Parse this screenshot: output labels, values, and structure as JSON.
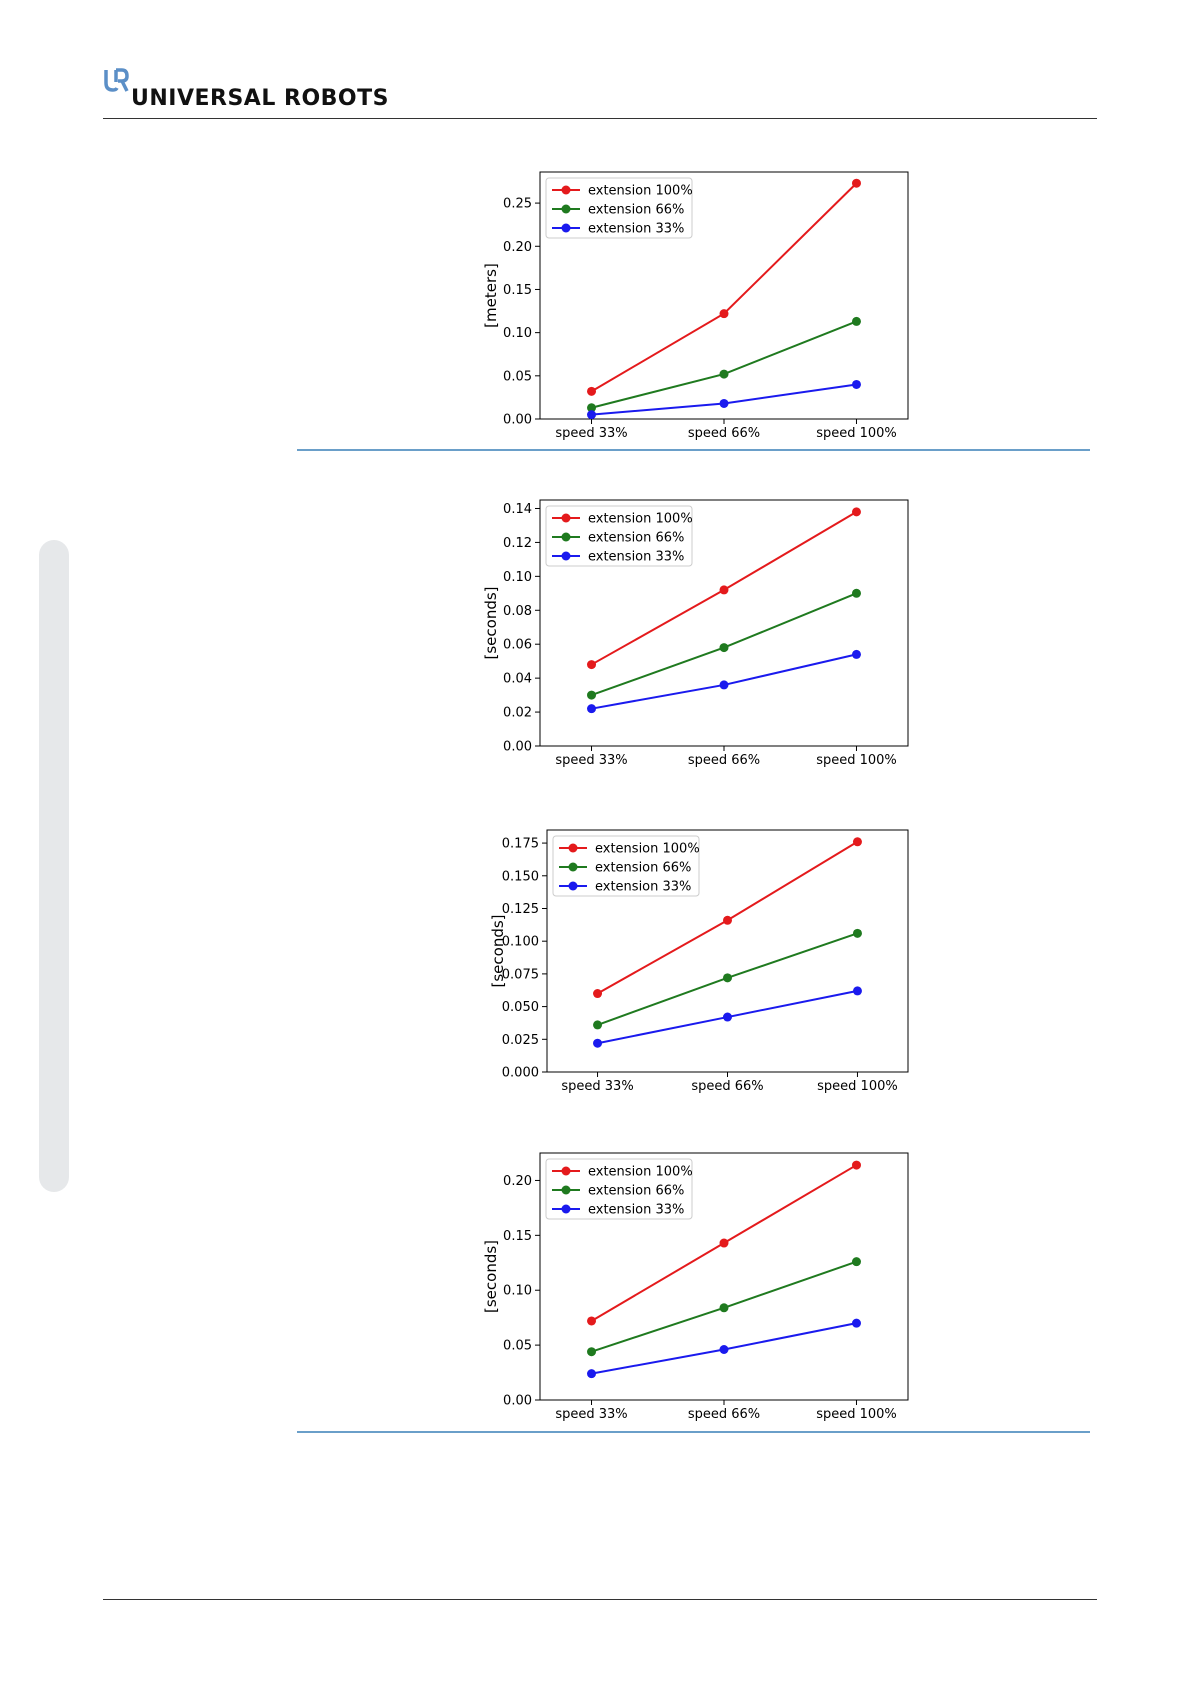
{
  "header": {
    "logo_text": "UNIVERSAL ROBOTS",
    "logo_color": "#5b8fc7"
  },
  "colors": {
    "extension_100": "#e41a1c",
    "extension_66": "#1f7a1f",
    "extension_33": "#1a1aee",
    "separator": "#6a9fc9"
  },
  "chart_data": [
    {
      "type": "line",
      "categories": [
        "speed 33%",
        "speed 66%",
        "speed 100%"
      ],
      "ylabel": "[meters]",
      "ylim": [
        0,
        0.286
      ],
      "yticks": [
        0.0,
        0.05,
        0.1,
        0.15,
        0.2,
        0.25
      ],
      "ytick_labels": [
        "0.00",
        "0.05",
        "0.10",
        "0.15",
        "0.20",
        "0.25"
      ],
      "legend_position": "top-left",
      "series": [
        {
          "name": "extension 100%",
          "color": "#e41a1c",
          "values": [
            0.032,
            0.122,
            0.273
          ]
        },
        {
          "name": "extension 66%",
          "color": "#1f7a1f",
          "values": [
            0.013,
            0.052,
            0.113
          ]
        },
        {
          "name": "extension 33%",
          "color": "#1a1aee",
          "values": [
            0.005,
            0.018,
            0.04
          ]
        }
      ]
    },
    {
      "type": "line",
      "categories": [
        "speed 33%",
        "speed 66%",
        "speed 100%"
      ],
      "ylabel": "[seconds]",
      "ylim": [
        0,
        0.145
      ],
      "yticks": [
        0.0,
        0.02,
        0.04,
        0.06,
        0.08,
        0.1,
        0.12,
        0.14
      ],
      "ytick_labels": [
        "0.00",
        "0.02",
        "0.04",
        "0.06",
        "0.08",
        "0.10",
        "0.12",
        "0.14"
      ],
      "legend_position": "top-left",
      "series": [
        {
          "name": "extension 100%",
          "color": "#e41a1c",
          "values": [
            0.048,
            0.092,
            0.138
          ]
        },
        {
          "name": "extension 66%",
          "color": "#1f7a1f",
          "values": [
            0.03,
            0.058,
            0.09
          ]
        },
        {
          "name": "extension 33%",
          "color": "#1a1aee",
          "values": [
            0.022,
            0.036,
            0.054
          ]
        }
      ]
    },
    {
      "type": "line",
      "categories": [
        "speed 33%",
        "speed 66%",
        "speed 100%"
      ],
      "ylabel": "[seconds]",
      "ylim": [
        0,
        0.185
      ],
      "yticks": [
        0.0,
        0.025,
        0.05,
        0.075,
        0.1,
        0.125,
        0.15,
        0.175
      ],
      "ytick_labels": [
        "0.000",
        "0.025",
        "0.050",
        "0.075",
        "0.100",
        "0.125",
        "0.150",
        "0.175"
      ],
      "legend_position": "top-left",
      "series": [
        {
          "name": "extension 100%",
          "color": "#e41a1c",
          "values": [
            0.06,
            0.116,
            0.176
          ]
        },
        {
          "name": "extension 66%",
          "color": "#1f7a1f",
          "values": [
            0.036,
            0.072,
            0.106
          ]
        },
        {
          "name": "extension 33%",
          "color": "#1a1aee",
          "values": [
            0.022,
            0.042,
            0.062
          ]
        }
      ]
    },
    {
      "type": "line",
      "categories": [
        "speed 33%",
        "speed 66%",
        "speed 100%"
      ],
      "ylabel": "[seconds]",
      "ylim": [
        0,
        0.225
      ],
      "yticks": [
        0.0,
        0.05,
        0.1,
        0.15,
        0.2
      ],
      "ytick_labels": [
        "0.00",
        "0.05",
        "0.10",
        "0.15",
        "0.20"
      ],
      "legend_position": "top-left",
      "series": [
        {
          "name": "extension 100%",
          "color": "#e41a1c",
          "values": [
            0.072,
            0.143,
            0.214
          ]
        },
        {
          "name": "extension 66%",
          "color": "#1f7a1f",
          "values": [
            0.044,
            0.084,
            0.126
          ]
        },
        {
          "name": "extension 33%",
          "color": "#1a1aee",
          "values": [
            0.024,
            0.046,
            0.07
          ]
        }
      ]
    }
  ]
}
